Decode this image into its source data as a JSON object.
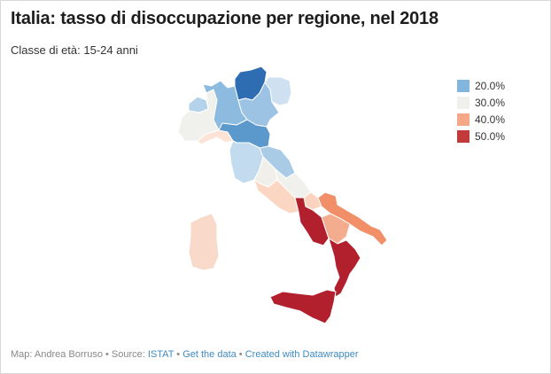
{
  "title": "Italia: tasso di disoccupazione per regione, nel 2018",
  "subtitle": "Classe di età: 15-24 anni",
  "legend": [
    {
      "label": "20.0%",
      "color": "#82b6dd"
    },
    {
      "label": "30.0%",
      "color": "#f0f0ec"
    },
    {
      "label": "40.0%",
      "color": "#f4a888"
    },
    {
      "label": "50.0%",
      "color": "#c33a3a"
    }
  ],
  "footer": {
    "credit": "Map: Andrea Borruso • Source: ",
    "source": "ISTAT",
    "sep1": " • ",
    "get_data": "Get the data",
    "sep2": " • ",
    "created_with": "Created with Datawrapper"
  },
  "regions": [
    {
      "name": "Trentino-Alto Adige",
      "color": "#2f6db3"
    },
    {
      "name": "Friuli-Venezia Giulia",
      "color": "#cfe1f0"
    },
    {
      "name": "Veneto",
      "color": "#9cc3e3"
    },
    {
      "name": "Lombardia",
      "color": "#8dbbdf"
    },
    {
      "name": "Valle d'Aosta",
      "color": "#b4d2ea"
    },
    {
      "name": "Piemonte",
      "color": "#f0f0ec"
    },
    {
      "name": "Liguria",
      "color": "#fce3d6"
    },
    {
      "name": "Emilia-Romagna",
      "color": "#5b98cc"
    },
    {
      "name": "Toscana",
      "color": "#c2dbee"
    },
    {
      "name": "Marche",
      "color": "#a9cbe6"
    },
    {
      "name": "Umbria",
      "color": "#f1efe9"
    },
    {
      "name": "Lazio",
      "color": "#fbd6c3"
    },
    {
      "name": "Abruzzo",
      "color": "#f0f0ec"
    },
    {
      "name": "Molise",
      "color": "#fbd3bf"
    },
    {
      "name": "Campania",
      "color": "#b21f2d"
    },
    {
      "name": "Puglia",
      "color": "#f08f68"
    },
    {
      "name": "Basilicata",
      "color": "#f4ac8e"
    },
    {
      "name": "Calabria",
      "color": "#b21f2d"
    },
    {
      "name": "Sicilia",
      "color": "#b21f2d"
    },
    {
      "name": "Sardegna",
      "color": "#f9d9c9"
    }
  ]
}
